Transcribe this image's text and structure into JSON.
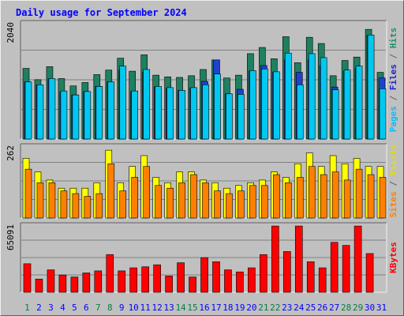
{
  "chart_data": {
    "type": "bar",
    "title": "Daily usage for September 2024",
    "categories": [
      "1",
      "2",
      "3",
      "4",
      "5",
      "6",
      "7",
      "8",
      "9",
      "10",
      "11",
      "12",
      "13",
      "14",
      "15",
      "16",
      "17",
      "18",
      "19",
      "20",
      "21",
      "22",
      "23",
      "24",
      "25",
      "26",
      "27",
      "28",
      "29",
      "30",
      "31"
    ],
    "weekend_days": [
      "1",
      "7",
      "8",
      "14",
      "15",
      "21",
      "22",
      "28",
      "29"
    ],
    "panels": [
      {
        "id": "hits-files-pages",
        "ylabel_parts": [
          {
            "text": "Pages",
            "color": "#00c0ff"
          },
          {
            "text": " / ",
            "color": "#606060"
          },
          {
            "text": "Files",
            "color": "#2020d0"
          },
          {
            "text": " / ",
            "color": "#606060"
          },
          {
            "text": "Hits",
            "color": "#1e9070"
          }
        ],
        "ytick_top": "2040",
        "ylim": [
          0,
          2040
        ],
        "series": [
          {
            "name": "Hits",
            "color": "#1e8060",
            "values": [
              1250,
              1050,
              1280,
              1070,
              940,
              1000,
              1140,
              1220,
              1430,
              1200,
              1490,
              1130,
              1100,
              1090,
              1120,
              1230,
              1400,
              1080,
              1130,
              1510,
              1620,
              1420,
              1810,
              1350,
              1800,
              1690,
              1120,
              1390,
              1450,
              1940,
              1180
            ]
          },
          {
            "name": "Files",
            "color": "#2040d0",
            "values": [
              1010,
              960,
              1060,
              830,
              780,
              840,
              930,
              1010,
              1220,
              840,
              1180,
              920,
              900,
              860,
              900,
              1020,
              1400,
              800,
              880,
              1200,
              1300,
              1180,
              1400,
              1180,
              1400,
              1300,
              920,
              1200,
              1250,
              1830,
              1080
            ]
          },
          {
            "name": "Pages",
            "color": "#00c8f0",
            "values": [
              1010,
              960,
              1070,
              850,
              780,
              840,
              930,
              1010,
              1290,
              850,
              1230,
              930,
              910,
              860,
              910,
              960,
              1150,
              800,
              790,
              1210,
              1240,
              1190,
              1520,
              960,
              1510,
              1440,
              870,
              1220,
              1290,
              1840,
              890
            ]
          }
        ]
      },
      {
        "id": "visits-sites",
        "ylabel_parts": [
          {
            "text": "Sites",
            "color": "#ff8000"
          },
          {
            "text": " / ",
            "color": "#606060"
          },
          {
            "text": "Visits",
            "color": "#e0e000"
          }
        ],
        "ytick_top": "262",
        "ylim": [
          0,
          262
        ],
        "series": [
          {
            "name": "Visits",
            "color": "#ffff00",
            "values": [
              220,
              170,
              140,
              110,
              110,
              110,
              130,
              250,
              130,
              190,
              230,
              150,
              130,
              170,
              170,
              140,
              130,
              110,
              120,
              130,
              140,
              170,
              150,
              200,
              240,
              190,
              230,
              200,
              220,
              190,
              190
            ]
          },
          {
            "name": "Sites",
            "color": "#ff8000",
            "values": [
              180,
              130,
              130,
              100,
              90,
              80,
              90,
              200,
              100,
              150,
              190,
              120,
              110,
              130,
              160,
              130,
              100,
              90,
              100,
              120,
              120,
              160,
              130,
              150,
              190,
              160,
              170,
              140,
              180,
              160,
              150
            ]
          }
        ]
      },
      {
        "id": "kbytes",
        "ylabel_parts": [
          {
            "text": "KBytes",
            "color": "#ff0000"
          }
        ],
        "ytick_top": "65091",
        "ylim": [
          0,
          65091
        ],
        "series": [
          {
            "name": "KBytes",
            "color": "#ff0000",
            "values": [
              28000,
              13000,
              22000,
              17000,
              15000,
              19000,
              21000,
              37000,
              21000,
              24000,
              25000,
              27000,
              16000,
              29000,
              15000,
              34000,
              30000,
              22000,
              20000,
              24000,
              37000,
              65000,
              40000,
              65000,
              30000,
              24000,
              49000,
              46000,
              65000,
              38000,
              0
            ]
          }
        ]
      }
    ]
  },
  "colors": {
    "frame_bg": "#c0c0c0",
    "plot_bg": "#c0c0c0",
    "grid": "#808080",
    "title": "#0000ff",
    "weekday_label": "#0000ff",
    "weekend_label": "#008040"
  }
}
